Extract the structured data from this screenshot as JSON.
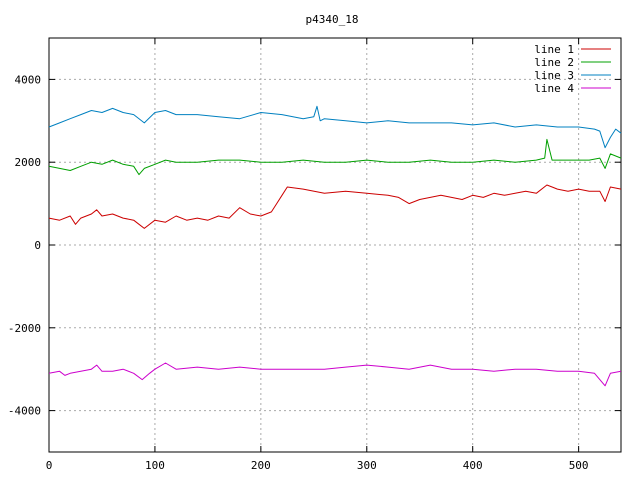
{
  "chart_data": {
    "type": "line",
    "title": "p4340_18",
    "xlabel": "",
    "ylabel": "",
    "xlim": [
      0,
      540
    ],
    "ylim": [
      -5000,
      5000
    ],
    "x_ticks": [
      0,
      100,
      200,
      300,
      400,
      500
    ],
    "y_ticks": [
      -4000,
      -2000,
      0,
      2000,
      4000
    ],
    "grid": true,
    "legend_position": "top-right",
    "series": [
      {
        "name": "line 1",
        "color": "#cc0000",
        "x": [
          0,
          10,
          20,
          25,
          30,
          40,
          45,
          50,
          60,
          70,
          80,
          85,
          90,
          100,
          110,
          120,
          130,
          140,
          150,
          160,
          170,
          180,
          190,
          200,
          210,
          215,
          220,
          225,
          240,
          260,
          280,
          300,
          320,
          330,
          340,
          350,
          360,
          370,
          380,
          390,
          400,
          410,
          420,
          430,
          440,
          450,
          460,
          470,
          475,
          480,
          490,
          500,
          510,
          520,
          525,
          530,
          540
        ],
        "y": [
          650,
          600,
          700,
          500,
          650,
          750,
          850,
          700,
          750,
          650,
          600,
          500,
          400,
          600,
          550,
          700,
          600,
          650,
          600,
          700,
          650,
          900,
          750,
          700,
          800,
          1000,
          1200,
          1400,
          1350,
          1250,
          1300,
          1250,
          1200,
          1150,
          1000,
          1100,
          1150,
          1200,
          1150,
          1100,
          1200,
          1150,
          1250,
          1200,
          1250,
          1300,
          1250,
          1450,
          1400,
          1350,
          1300,
          1350,
          1300,
          1300,
          1050,
          1400,
          1350
        ]
      },
      {
        "name": "line 2",
        "color": "#00a000",
        "x": [
          0,
          10,
          20,
          30,
          40,
          50,
          60,
          70,
          80,
          85,
          90,
          100,
          110,
          120,
          140,
          160,
          180,
          200,
          220,
          240,
          260,
          280,
          300,
          320,
          340,
          360,
          380,
          400,
          420,
          440,
          460,
          468,
          470,
          475,
          480,
          490,
          500,
          510,
          520,
          525,
          530,
          535,
          540
        ],
        "y": [
          1900,
          1850,
          1800,
          1900,
          2000,
          1950,
          2050,
          1950,
          1900,
          1700,
          1850,
          1950,
          2050,
          2000,
          2000,
          2050,
          2050,
          2000,
          2000,
          2050,
          2000,
          2000,
          2050,
          2000,
          2000,
          2050,
          2000,
          2000,
          2050,
          2000,
          2050,
          2100,
          2550,
          2050,
          2050,
          2050,
          2050,
          2050,
          2100,
          1850,
          2200,
          2150,
          2100
        ]
      },
      {
        "name": "line 3",
        "color": "#0080c0",
        "x": [
          0,
          10,
          20,
          30,
          40,
          50,
          60,
          70,
          80,
          90,
          100,
          110,
          120,
          140,
          160,
          180,
          200,
          220,
          240,
          250,
          253,
          256,
          260,
          280,
          300,
          320,
          340,
          360,
          380,
          400,
          420,
          440,
          460,
          480,
          500,
          515,
          520,
          525,
          530,
          535,
          540
        ],
        "y": [
          2850,
          2950,
          3050,
          3150,
          3250,
          3200,
          3300,
          3200,
          3150,
          2950,
          3200,
          3250,
          3150,
          3150,
          3100,
          3050,
          3200,
          3150,
          3050,
          3100,
          3350,
          3000,
          3050,
          3000,
          2950,
          3000,
          2950,
          2950,
          2950,
          2900,
          2950,
          2850,
          2900,
          2850,
          2850,
          2800,
          2750,
          2350,
          2600,
          2800,
          2700
        ]
      },
      {
        "name": "line 4",
        "color": "#cc00cc",
        "x": [
          0,
          10,
          15,
          20,
          30,
          40,
          45,
          50,
          60,
          70,
          80,
          88,
          95,
          100,
          110,
          120,
          140,
          160,
          180,
          200,
          220,
          240,
          260,
          280,
          300,
          320,
          340,
          360,
          380,
          400,
          420,
          440,
          460,
          480,
          500,
          515,
          520,
          525,
          530,
          540
        ],
        "y": [
          -3100,
          -3050,
          -3150,
          -3100,
          -3050,
          -3000,
          -2900,
          -3050,
          -3050,
          -3000,
          -3100,
          -3250,
          -3100,
          -3000,
          -2850,
          -3000,
          -2950,
          -3000,
          -2950,
          -3000,
          -3000,
          -3000,
          -3000,
          -2950,
          -2900,
          -2950,
          -3000,
          -2900,
          -3000,
          -3000,
          -3050,
          -3000,
          -3000,
          -3050,
          -3050,
          -3100,
          -3250,
          -3400,
          -3100,
          -3050
        ]
      }
    ]
  }
}
